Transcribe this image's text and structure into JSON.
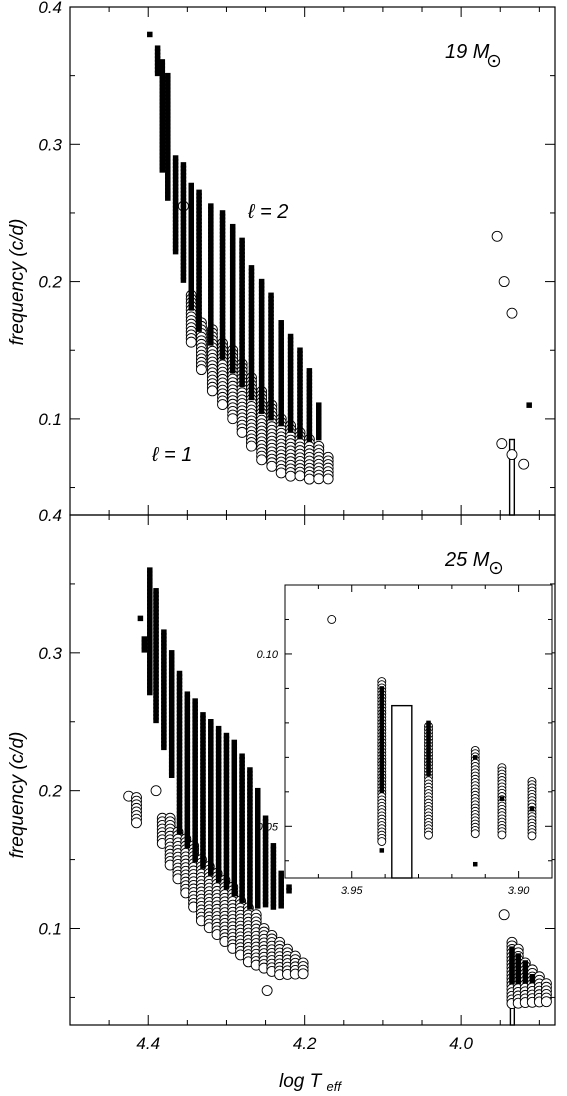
{
  "chart_data": [
    {
      "type": "scatter",
      "panel": "top",
      "xlabel": "log Teff",
      "ylabel": "frequency (c/d)",
      "xlim": [
        4.5,
        3.88
      ],
      "ylim": [
        0.03,
        0.4
      ],
      "yticks": [
        "0.1",
        "0.2",
        "0.3",
        "0.4"
      ],
      "annotations": {
        "mass": "19 M",
        "l2": "ℓ = 2",
        "l1": "ℓ = 1"
      },
      "series": [
        {
          "name": "ℓ = 1",
          "marker": "open-circle",
          "columns": [
            {
              "x": 4.355,
              "ys": [
                0.255
              ]
            },
            {
              "x": 4.345,
              "min": 0.155,
              "max": 0.19
            },
            {
              "x": 4.332,
              "min": 0.135,
              "max": 0.17
            },
            {
              "x": 4.318,
              "min": 0.12,
              "max": 0.165
            },
            {
              "x": 4.305,
              "min": 0.11,
              "max": 0.155
            },
            {
              "x": 4.292,
              "min": 0.1,
              "max": 0.15
            },
            {
              "x": 4.28,
              "min": 0.09,
              "max": 0.14
            },
            {
              "x": 4.268,
              "min": 0.08,
              "max": 0.13
            },
            {
              "x": 4.255,
              "min": 0.07,
              "max": 0.12
            },
            {
              "x": 4.242,
              "min": 0.065,
              "max": 0.11
            },
            {
              "x": 4.23,
              "min": 0.06,
              "max": 0.1
            },
            {
              "x": 4.218,
              "min": 0.058,
              "max": 0.095
            },
            {
              "x": 4.206,
              "min": 0.057,
              "max": 0.09
            },
            {
              "x": 4.194,
              "min": 0.056,
              "max": 0.085
            },
            {
              "x": 4.182,
              "min": 0.056,
              "max": 0.08
            },
            {
              "x": 4.17,
              "min": 0.056,
              "max": 0.072
            },
            {
              "x": 3.954,
              "ys": [
                0.233
              ]
            },
            {
              "x": 3.945,
              "ys": [
                0.2
              ]
            },
            {
              "x": 3.935,
              "ys": [
                0.177
              ]
            },
            {
              "x": 3.948,
              "ys": [
                0.082
              ]
            },
            {
              "x": 3.935,
              "ys": [
                0.074
              ]
            },
            {
              "x": 3.92,
              "ys": [
                0.067
              ]
            }
          ]
        },
        {
          "name": "ℓ = 2",
          "marker": "filled-square",
          "columns": [
            {
              "x": 4.398,
              "ys": [
                0.38
              ]
            },
            {
              "x": 4.388,
              "min": 0.35,
              "max": 0.37
            },
            {
              "x": 4.382,
              "min": 0.28,
              "max": 0.36
            },
            {
              "x": 4.375,
              "min": 0.26,
              "max": 0.35
            },
            {
              "x": 4.365,
              "min": 0.22,
              "max": 0.29
            },
            {
              "x": 4.355,
              "min": 0.2,
              "max": 0.285
            },
            {
              "x": 4.345,
              "min": 0.18,
              "max": 0.27
            },
            {
              "x": 4.335,
              "min": 0.165,
              "max": 0.265
            },
            {
              "x": 4.32,
              "min": 0.155,
              "max": 0.255
            },
            {
              "x": 4.305,
              "min": 0.145,
              "max": 0.25
            },
            {
              "x": 4.292,
              "min": 0.135,
              "max": 0.24
            },
            {
              "x": 4.28,
              "min": 0.125,
              "max": 0.23
            },
            {
              "x": 4.268,
              "min": 0.115,
              "max": 0.21
            },
            {
              "x": 4.255,
              "min": 0.105,
              "max": 0.2
            },
            {
              "x": 4.243,
              "min": 0.1,
              "max": 0.19
            },
            {
              "x": 4.23,
              "min": 0.095,
              "max": 0.17
            },
            {
              "x": 4.218,
              "min": 0.09,
              "max": 0.16
            },
            {
              "x": 4.206,
              "min": 0.085,
              "max": 0.15
            },
            {
              "x": 4.194,
              "min": 0.085,
              "max": 0.135
            },
            {
              "x": 4.182,
              "min": 0.085,
              "max": 0.11
            },
            {
              "x": 3.913,
              "ys": [
                0.11
              ]
            }
          ]
        }
      ],
      "box": {
        "x0": 3.938,
        "x1": 3.932,
        "top": 0.085
      }
    },
    {
      "type": "scatter",
      "panel": "bottom",
      "xlabel": "log Teff",
      "ylabel": "frequency (c/d)",
      "xlim": [
        4.5,
        3.88
      ],
      "ylim": [
        0.03,
        0.4
      ],
      "xticks": [
        "4.4",
        "4.2",
        "4.0"
      ],
      "yticks": [
        "0.1",
        "0.2",
        "0.3",
        "0.4"
      ],
      "annotations": {
        "mass": "25 M"
      },
      "series": [
        {
          "name": "ℓ = 1",
          "marker": "open-circle",
          "columns": [
            {
              "x": 4.425,
              "ys": [
                0.196
              ]
            },
            {
              "x": 4.415,
              "min": 0.175,
              "max": 0.195
            },
            {
              "x": 4.39,
              "ys": [
                0.2
              ]
            },
            {
              "x": 4.382,
              "min": 0.16,
              "max": 0.18
            },
            {
              "x": 4.372,
              "min": 0.145,
              "max": 0.18
            },
            {
              "x": 4.362,
              "min": 0.135,
              "max": 0.17
            },
            {
              "x": 4.352,
              "min": 0.125,
              "max": 0.165
            },
            {
              "x": 4.342,
              "min": 0.115,
              "max": 0.16
            },
            {
              "x": 4.332,
              "min": 0.105,
              "max": 0.15
            },
            {
              "x": 4.322,
              "min": 0.1,
              "max": 0.145
            },
            {
              "x": 4.312,
              "min": 0.095,
              "max": 0.14
            },
            {
              "x": 4.302,
              "min": 0.09,
              "max": 0.135
            },
            {
              "x": 4.292,
              "min": 0.085,
              "max": 0.13
            },
            {
              "x": 4.282,
              "min": 0.08,
              "max": 0.12
            },
            {
              "x": 4.272,
              "min": 0.075,
              "max": 0.115
            },
            {
              "x": 4.262,
              "min": 0.072,
              "max": 0.11
            },
            {
              "x": 4.252,
              "min": 0.07,
              "max": 0.1
            },
            {
              "x": 4.242,
              "min": 0.068,
              "max": 0.095
            },
            {
              "x": 4.232,
              "min": 0.066,
              "max": 0.09
            },
            {
              "x": 4.222,
              "min": 0.066,
              "max": 0.085
            },
            {
              "x": 4.212,
              "min": 0.066,
              "max": 0.08
            },
            {
              "x": 4.202,
              "min": 0.066,
              "max": 0.075
            },
            {
              "x": 4.248,
              "ys": [
                0.055
              ]
            },
            {
              "x": 3.945,
              "ys": [
                0.11
              ]
            },
            {
              "x": 3.935,
              "min": 0.045,
              "max": 0.09
            },
            {
              "x": 3.927,
              "min": 0.045,
              "max": 0.085
            },
            {
              "x": 3.918,
              "min": 0.045,
              "max": 0.075
            },
            {
              "x": 3.909,
              "min": 0.045,
              "max": 0.07
            },
            {
              "x": 3.9,
              "min": 0.045,
              "max": 0.065
            },
            {
              "x": 3.891,
              "min": 0.045,
              "max": 0.06
            }
          ]
        },
        {
          "name": "ℓ = 2",
          "marker": "filled-square",
          "columns": [
            {
              "x": 4.41,
              "ys": [
                0.325
              ]
            },
            {
              "x": 4.405,
              "min": 0.3,
              "max": 0.31
            },
            {
              "x": 4.398,
              "min": 0.27,
              "max": 0.36
            },
            {
              "x": 4.39,
              "min": 0.25,
              "max": 0.345
            },
            {
              "x": 4.38,
              "min": 0.23,
              "max": 0.315
            },
            {
              "x": 4.37,
              "min": 0.21,
              "max": 0.3
            },
            {
              "x": 4.36,
              "min": 0.17,
              "max": 0.285
            },
            {
              "x": 4.35,
              "min": 0.16,
              "max": 0.27
            },
            {
              "x": 4.34,
              "min": 0.15,
              "max": 0.265
            },
            {
              "x": 4.33,
              "min": 0.145,
              "max": 0.255
            },
            {
              "x": 4.32,
              "min": 0.14,
              "max": 0.25
            },
            {
              "x": 4.31,
              "min": 0.135,
              "max": 0.245
            },
            {
              "x": 4.3,
              "min": 0.13,
              "max": 0.24
            },
            {
              "x": 4.29,
              "min": 0.125,
              "max": 0.235
            },
            {
              "x": 4.28,
              "min": 0.12,
              "max": 0.225
            },
            {
              "x": 4.27,
              "min": 0.115,
              "max": 0.215
            },
            {
              "x": 4.26,
              "min": 0.115,
              "max": 0.2
            },
            {
              "x": 4.25,
              "min": 0.115,
              "max": 0.18
            },
            {
              "x": 4.24,
              "min": 0.115,
              "max": 0.16
            },
            {
              "x": 4.23,
              "min": 0.115,
              "max": 0.14
            },
            {
              "x": 4.22,
              "min": 0.125,
              "max": 0.13
            },
            {
              "x": 3.935,
              "min": 0.06,
              "max": 0.085
            },
            {
              "x": 3.927,
              "min": 0.06,
              "max": 0.08
            },
            {
              "x": 3.918,
              "min": 0.06,
              "max": 0.075
            },
            {
              "x": 3.909,
              "min": 0.06,
              "max": 0.065
            }
          ]
        }
      ],
      "box": {
        "x0": 3.937,
        "x1": 3.932,
        "top": 0.06
      }
    },
    {
      "type": "scatter",
      "panel": "inset",
      "xlim": [
        3.97,
        3.89
      ],
      "ylim": [
        0.035,
        0.12
      ],
      "xticks": [
        "3.95",
        "3.90"
      ],
      "yticks": [
        "0.05",
        "0.10"
      ],
      "series": [
        {
          "name": "ℓ = 1",
          "marker": "open-circle",
          "columns": [
            {
              "x": 3.956,
              "ys": [
                0.11
              ]
            },
            {
              "x": 3.941,
              "min": 0.045,
              "max": 0.092
            },
            {
              "x": 3.927,
              "min": 0.047,
              "max": 0.079
            },
            {
              "x": 3.913,
              "min": 0.047,
              "max": 0.072
            },
            {
              "x": 3.905,
              "min": 0.047,
              "max": 0.067
            },
            {
              "x": 3.896,
              "min": 0.047,
              "max": 0.063
            }
          ]
        },
        {
          "name": "ℓ = 2",
          "marker": "filled-square",
          "columns": [
            {
              "x": 3.941,
              "min": 0.06,
              "max": 0.09
            },
            {
              "x": 3.927,
              "min": 0.065,
              "max": 0.08
            },
            {
              "x": 3.913,
              "ys": [
                0.07
              ]
            },
            {
              "x": 3.905,
              "ys": [
                0.058
              ]
            },
            {
              "x": 3.896,
              "ys": [
                0.055
              ]
            },
            {
              "x": 3.941,
              "ys": [
                0.043
              ]
            },
            {
              "x": 3.913,
              "ys": [
                0.039
              ]
            }
          ]
        }
      ],
      "box": {
        "x0": 3.938,
        "x1": 3.932,
        "top": 0.085
      }
    }
  ]
}
